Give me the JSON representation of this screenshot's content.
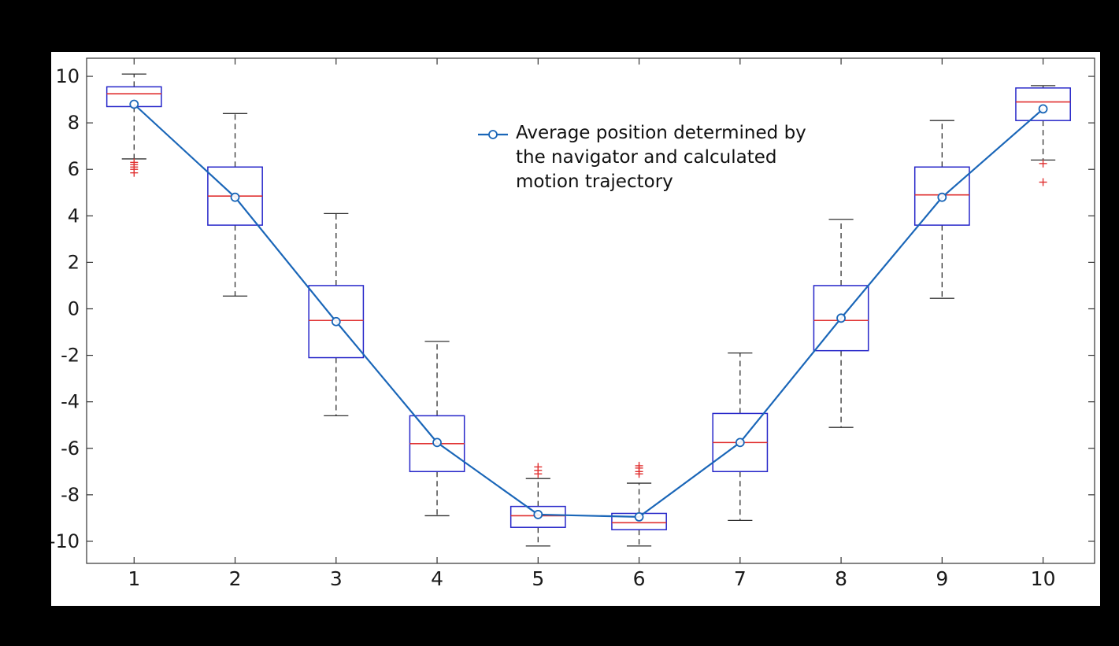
{
  "figure": {
    "page_background": "#000000",
    "plot_background": "#ffffff"
  },
  "chart_data": {
    "type": "boxplot",
    "title": "",
    "xlabel": "",
    "ylabel": "",
    "xlim": [
      0.53,
      10.51
    ],
    "ylim": [
      -10.95,
      10.78
    ],
    "xticks": [
      1,
      2,
      3,
      4,
      5,
      6,
      7,
      8,
      9,
      10
    ],
    "yticks": [
      -10,
      -8,
      -6,
      -4,
      -2,
      0,
      2,
      4,
      6,
      8,
      10
    ],
    "grid": false,
    "boxes": [
      {
        "x": 1,
        "q1": 8.7,
        "median": 9.25,
        "q3": 9.55,
        "lo": 6.45,
        "hi": 10.1,
        "outliers": [
          6.3,
          6.2,
          6.1,
          6.0,
          5.85
        ]
      },
      {
        "x": 2,
        "q1": 3.6,
        "median": 4.85,
        "q3": 6.1,
        "lo": 0.55,
        "hi": 8.4,
        "outliers": []
      },
      {
        "x": 3,
        "q1": -2.1,
        "median": -0.5,
        "q3": 1.0,
        "lo": -4.6,
        "hi": 4.1,
        "outliers": []
      },
      {
        "x": 4,
        "q1": -7.0,
        "median": -5.8,
        "q3": -4.6,
        "lo": -8.9,
        "hi": -1.4,
        "outliers": []
      },
      {
        "x": 5,
        "q1": -9.4,
        "median": -8.9,
        "q3": -8.5,
        "lo": -10.2,
        "hi": -7.3,
        "outliers": [
          -6.8,
          -6.95,
          -7.1
        ]
      },
      {
        "x": 6,
        "q1": -9.5,
        "median": -9.2,
        "q3": -8.8,
        "lo": -10.2,
        "hi": -7.5,
        "outliers": [
          -6.75,
          -6.85,
          -7.0,
          -7.1
        ]
      },
      {
        "x": 7,
        "q1": -7.0,
        "median": -5.75,
        "q3": -4.5,
        "lo": -9.1,
        "hi": -1.9,
        "outliers": []
      },
      {
        "x": 8,
        "q1": -1.8,
        "median": -0.5,
        "q3": 1.0,
        "lo": -5.1,
        "hi": 3.85,
        "outliers": []
      },
      {
        "x": 9,
        "q1": 3.6,
        "median": 4.9,
        "q3": 6.1,
        "lo": 0.45,
        "hi": 8.1,
        "outliers": []
      },
      {
        "x": 10,
        "q1": 8.1,
        "median": 8.9,
        "q3": 9.5,
        "lo": 6.4,
        "hi": 9.6,
        "outliers": [
          6.25,
          5.45
        ]
      }
    ],
    "series": [
      {
        "name": "Average position determined by the navigator and calculated motion trajectory",
        "type": "line",
        "x": [
          1,
          2,
          3,
          4,
          5,
          6,
          7,
          8,
          9,
          10
        ],
        "values": [
          8.8,
          4.8,
          -0.55,
          -5.75,
          -8.85,
          -8.95,
          -5.75,
          -0.4,
          4.8,
          8.6
        ]
      }
    ],
    "legend": {
      "position": "upper-center",
      "lines": [
        "Average position determined by",
        "the navigator and calculated",
        "motion trajectory"
      ]
    },
    "colors": {
      "box": "#2626c9",
      "median": "#e03131",
      "whisker": "#303030",
      "outlier": "#e03131",
      "line": "#1a66b8",
      "marker": "#1a66b8",
      "frame": "#333333",
      "tick_label": "#1a1a1a"
    }
  }
}
